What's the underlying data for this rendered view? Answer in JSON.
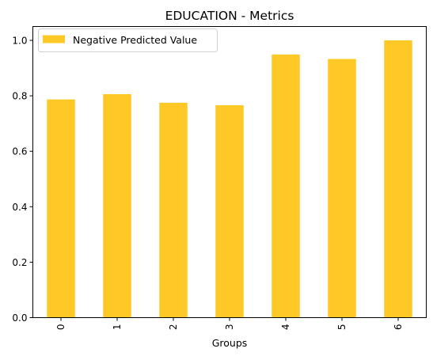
{
  "chart_data": {
    "type": "bar",
    "title": "EDUCATION - Metrics",
    "xlabel": "Groups",
    "ylabel": "",
    "categories": [
      "0",
      "1",
      "2",
      "3",
      "4",
      "5",
      "6"
    ],
    "series": [
      {
        "name": "Negative Predicted Value",
        "values": [
          0.787,
          0.806,
          0.775,
          0.766,
          0.949,
          0.933,
          1.0
        ],
        "color": "#fec926"
      }
    ],
    "ylim": [
      0,
      1.05
    ],
    "yticks": [
      "0.0",
      "0.2",
      "0.4",
      "0.6",
      "0.8",
      "1.0"
    ],
    "grid": false,
    "legend_position": "top-left"
  }
}
